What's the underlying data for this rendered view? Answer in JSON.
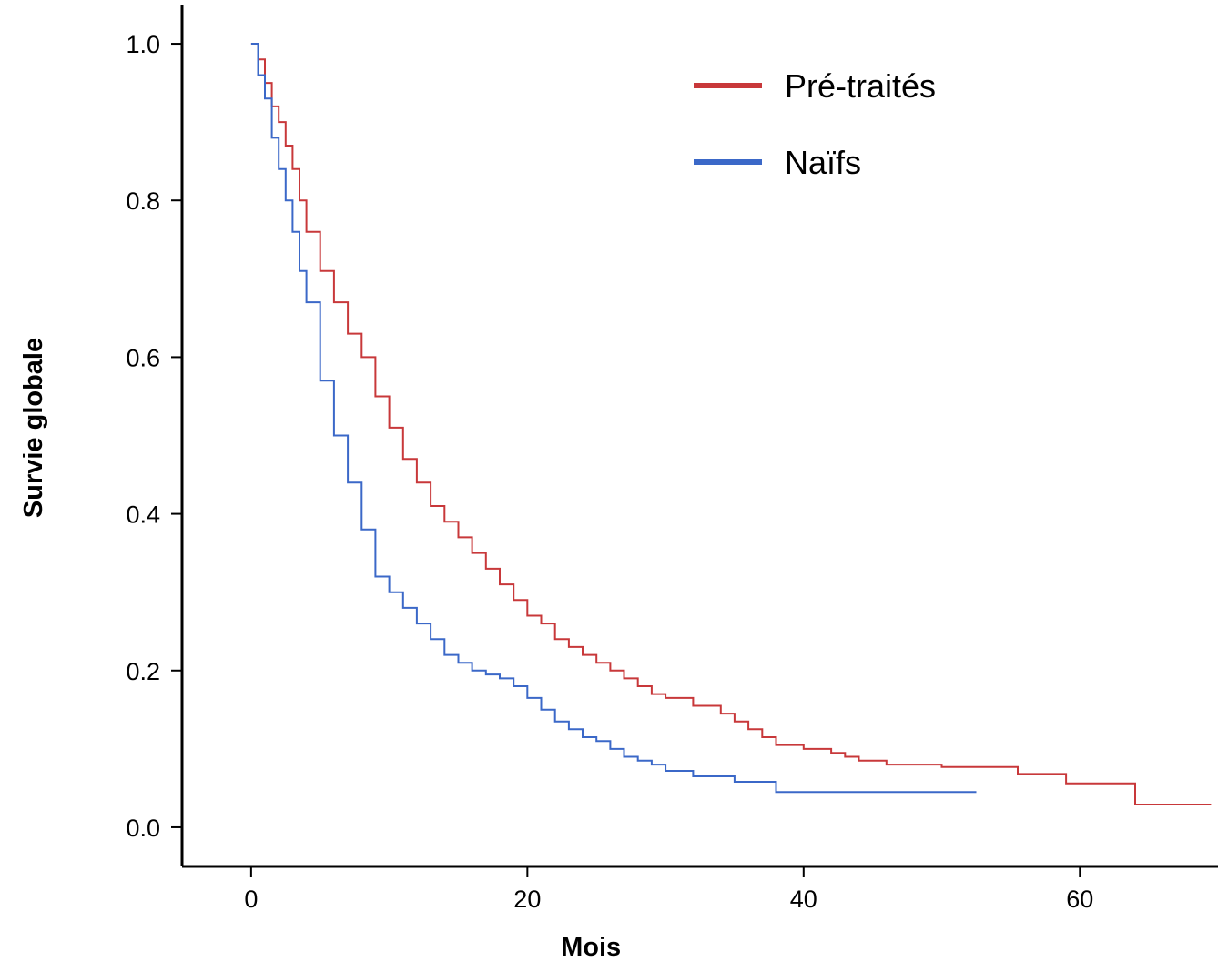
{
  "chart_data": {
    "type": "line",
    "step": true,
    "xlabel": "Mois",
    "ylabel": "Survie globale",
    "xlim": [
      -5,
      70
    ],
    "ylim": [
      -0.05,
      1.05
    ],
    "xticks": [
      0,
      20,
      40,
      60
    ],
    "yticks": [
      0.0,
      0.2,
      0.4,
      0.6,
      0.8,
      1.0
    ],
    "xtick_labels": [
      "0",
      "20",
      "40",
      "60"
    ],
    "ytick_labels": [
      "0.0",
      "0.2",
      "0.4",
      "0.6",
      "0.8",
      "1.0"
    ],
    "grid": false,
    "legend_position": "top-right",
    "series": [
      {
        "name": "Pré-traités",
        "color": "#c8383a",
        "x": [
          0,
          0.5,
          1,
          1.5,
          2,
          2.5,
          3,
          3.5,
          4,
          5,
          6,
          7,
          8,
          9,
          10,
          11,
          12,
          13,
          14,
          15,
          16,
          17,
          18,
          19,
          20,
          21,
          22,
          23,
          24,
          25,
          26,
          27,
          28,
          29,
          30,
          32,
          34,
          35,
          36,
          37,
          38,
          40,
          42,
          43,
          44,
          46,
          50,
          55.5,
          59,
          64,
          69.5
        ],
        "y": [
          1.0,
          0.98,
          0.95,
          0.92,
          0.9,
          0.87,
          0.84,
          0.8,
          0.76,
          0.71,
          0.67,
          0.63,
          0.6,
          0.55,
          0.51,
          0.47,
          0.44,
          0.41,
          0.39,
          0.37,
          0.35,
          0.33,
          0.31,
          0.29,
          0.27,
          0.26,
          0.24,
          0.23,
          0.22,
          0.21,
          0.2,
          0.19,
          0.18,
          0.17,
          0.165,
          0.155,
          0.145,
          0.135,
          0.125,
          0.115,
          0.105,
          0.1,
          0.095,
          0.09,
          0.085,
          0.08,
          0.077,
          0.068,
          0.056,
          0.029,
          0.029
        ]
      },
      {
        "name": "Naïfs",
        "color": "#3b68c8",
        "x": [
          0,
          0.5,
          1,
          1.5,
          2,
          2.5,
          3,
          3.5,
          4,
          5,
          6,
          7,
          8,
          9,
          10,
          11,
          12,
          13,
          14,
          15,
          16,
          17,
          18,
          19,
          20,
          21,
          22,
          23,
          24,
          25,
          26,
          27,
          28,
          29,
          30,
          32,
          35,
          38,
          40,
          45,
          52.5
        ],
        "y": [
          1.0,
          0.96,
          0.93,
          0.88,
          0.84,
          0.8,
          0.76,
          0.71,
          0.67,
          0.57,
          0.5,
          0.44,
          0.38,
          0.32,
          0.3,
          0.28,
          0.26,
          0.24,
          0.22,
          0.21,
          0.2,
          0.195,
          0.19,
          0.18,
          0.165,
          0.15,
          0.135,
          0.125,
          0.115,
          0.11,
          0.1,
          0.09,
          0.085,
          0.08,
          0.072,
          0.065,
          0.058,
          0.045,
          0.045,
          0.045,
          0.045
        ]
      }
    ]
  }
}
